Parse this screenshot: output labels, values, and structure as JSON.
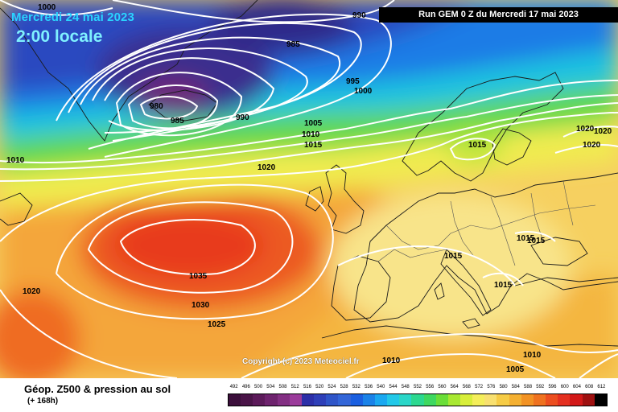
{
  "header": {
    "date": "Mercredi 24 mai 2023",
    "time": "2:00 locale",
    "run": "Run GEM 0 Z du Mercredi 17 mai 2023"
  },
  "map": {
    "copyright": "Copyright (c) 2023 Meteociel.fr",
    "isobar_labels": [
      "1000",
      "990",
      "985",
      "980",
      "985",
      "990",
      "995",
      "1000",
      "1005",
      "1010",
      "1015",
      "1020",
      "1010",
      "1015",
      "1020",
      "1020",
      "1020",
      "1015",
      "1015",
      "1015",
      "1015",
      "1035",
      "1030",
      "1025",
      "1020",
      "1010",
      "1010",
      "1005"
    ]
  },
  "legend": {
    "title": "Géop. Z500 & pression au sol",
    "subtitle": "(+ 168h)",
    "scale": [
      {
        "v": "492",
        "c": "#3b0f3b"
      },
      {
        "v": "496",
        "c": "#4a1448"
      },
      {
        "v": "500",
        "c": "#5c1a5a"
      },
      {
        "v": "504",
        "c": "#6e236e"
      },
      {
        "v": "508",
        "c": "#832f83"
      },
      {
        "v": "512",
        "c": "#9b3b9b"
      },
      {
        "v": "516",
        "c": "#2c2fa8"
      },
      {
        "v": "520",
        "c": "#2e3fb8"
      },
      {
        "v": "524",
        "c": "#2f55c8"
      },
      {
        "v": "528",
        "c": "#3366d8"
      },
      {
        "v": "532",
        "c": "#1a5fe0"
      },
      {
        "v": "536",
        "c": "#1a82e8"
      },
      {
        "v": "540",
        "c": "#1aa8f0"
      },
      {
        "v": "544",
        "c": "#22c8e8"
      },
      {
        "v": "548",
        "c": "#2ad6c8"
      },
      {
        "v": "552",
        "c": "#2cd890"
      },
      {
        "v": "556",
        "c": "#3ed860"
      },
      {
        "v": "560",
        "c": "#6ade38"
      },
      {
        "v": "564",
        "c": "#a8e832"
      },
      {
        "v": "568",
        "c": "#d8ee3a"
      },
      {
        "v": "572",
        "c": "#f4ee5a"
      },
      {
        "v": "576",
        "c": "#f8e070"
      },
      {
        "v": "580",
        "c": "#f6cc46"
      },
      {
        "v": "584",
        "c": "#f4b032"
      },
      {
        "v": "588",
        "c": "#f29224"
      },
      {
        "v": "592",
        "c": "#ef7220"
      },
      {
        "v": "596",
        "c": "#ec4e20"
      },
      {
        "v": "600",
        "c": "#e43020"
      },
      {
        "v": "604",
        "c": "#d21818"
      },
      {
        "v": "608",
        "c": "#9e1010"
      },
      {
        "v": "612",
        "c": "#000000"
      }
    ]
  }
}
